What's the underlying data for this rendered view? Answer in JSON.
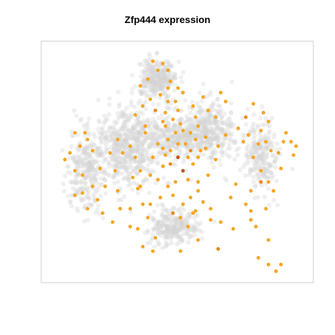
{
  "chart_data": {
    "type": "scatter",
    "title": "Zfp444 expression",
    "xlabel": "",
    "ylabel": "",
    "axes_visible": false,
    "grid": false,
    "legend": "none",
    "colors": {
      "background_cells": "#d4d4d4",
      "expressing_low": "#f5a623",
      "expressing_mid": "#ea8a1a",
      "expressing_high": "#c4541a",
      "frame": "#cccccc"
    },
    "clusters": [
      {
        "cx": 0.3,
        "cy": 0.42,
        "sx": 0.12,
        "sy": 0.16,
        "n": 520
      },
      {
        "cx": 0.62,
        "cy": 0.35,
        "sx": 0.1,
        "sy": 0.12,
        "n": 360
      },
      {
        "cx": 0.48,
        "cy": 0.38,
        "sx": 0.12,
        "sy": 0.08,
        "n": 280
      },
      {
        "cx": 0.42,
        "cy": 0.12,
        "sx": 0.07,
        "sy": 0.08,
        "n": 300
      },
      {
        "cx": 0.83,
        "cy": 0.46,
        "sx": 0.06,
        "sy": 0.14,
        "n": 220
      },
      {
        "cx": 0.48,
        "cy": 0.78,
        "sx": 0.09,
        "sy": 0.07,
        "n": 260
      },
      {
        "cx": 0.14,
        "cy": 0.52,
        "sx": 0.07,
        "sy": 0.18,
        "n": 260
      }
    ],
    "expressing_cells": [
      [
        0.36,
        0.87,
        1
      ],
      [
        0.41,
        0.83,
        1
      ],
      [
        0.4,
        0.89,
        1
      ],
      [
        0.6,
        0.67,
        1
      ],
      [
        0.66,
        0.88,
        2
      ],
      [
        0.72,
        0.79,
        1
      ],
      [
        0.67,
        0.76,
        1
      ],
      [
        0.63,
        0.75,
        1
      ],
      [
        0.58,
        0.84,
        1
      ],
      [
        0.77,
        0.68,
        1
      ],
      [
        0.79,
        0.71,
        1
      ],
      [
        0.82,
        0.92,
        1
      ],
      [
        0.86,
        0.95,
        1
      ],
      [
        0.89,
        0.98,
        1
      ],
      [
        0.91,
        0.95,
        1
      ],
      [
        0.86,
        0.84,
        1
      ],
      [
        0.63,
        0.7,
        1
      ],
      [
        0.57,
        0.71,
        1
      ],
      [
        0.51,
        0.89,
        1
      ],
      [
        0.51,
        0.74,
        1
      ],
      [
        0.54,
        0.78,
        1
      ],
      [
        0.36,
        0.68,
        1
      ],
      [
        0.39,
        0.68,
        1
      ],
      [
        0.2,
        0.72,
        1
      ],
      [
        0.26,
        0.62,
        1
      ],
      [
        0.31,
        0.78,
        1
      ],
      [
        0.31,
        0.7,
        1
      ],
      [
        0.34,
        0.61,
        1
      ],
      [
        0.48,
        0.72,
        2
      ],
      [
        0.48,
        0.64,
        1
      ],
      [
        0.42,
        0.57,
        1
      ],
      [
        0.49,
        0.58,
        1
      ],
      [
        0.44,
        0.51,
        1
      ],
      [
        0.47,
        0.5,
        2
      ],
      [
        0.5,
        0.47,
        3
      ],
      [
        0.52,
        0.53,
        3
      ],
      [
        0.54,
        0.47,
        1
      ],
      [
        0.56,
        0.5,
        1
      ],
      [
        0.58,
        0.47,
        1
      ],
      [
        0.59,
        0.44,
        1
      ],
      [
        0.55,
        0.44,
        2
      ],
      [
        0.53,
        0.41,
        1
      ],
      [
        0.5,
        0.41,
        1
      ],
      [
        0.47,
        0.44,
        1
      ],
      [
        0.44,
        0.43,
        1
      ],
      [
        0.42,
        0.41,
        1
      ],
      [
        0.46,
        0.39,
        1
      ],
      [
        0.49,
        0.36,
        1
      ],
      [
        0.52,
        0.35,
        1
      ],
      [
        0.55,
        0.36,
        1
      ],
      [
        0.58,
        0.33,
        1
      ],
      [
        0.61,
        0.38,
        1
      ],
      [
        0.61,
        0.43,
        1
      ],
      [
        0.57,
        0.39,
        1
      ],
      [
        0.45,
        0.33,
        1
      ],
      [
        0.44,
        0.31,
        1
      ],
      [
        0.48,
        0.3,
        1
      ],
      [
        0.51,
        0.32,
        1
      ],
      [
        0.45,
        0.27,
        1
      ],
      [
        0.46,
        0.22,
        1
      ],
      [
        0.43,
        0.19,
        1
      ],
      [
        0.46,
        0.16,
        1
      ],
      [
        0.47,
        0.13,
        1
      ],
      [
        0.5,
        0.16,
        1
      ],
      [
        0.52,
        0.18,
        1
      ],
      [
        0.49,
        0.22,
        1
      ],
      [
        0.56,
        0.24,
        1
      ],
      [
        0.6,
        0.2,
        1
      ],
      [
        0.62,
        0.26,
        1
      ],
      [
        0.69,
        0.22,
        1
      ],
      [
        0.67,
        0.18,
        1
      ],
      [
        0.79,
        0.75,
        1
      ],
      [
        0.81,
        0.78,
        1
      ],
      [
        0.85,
        0.7,
        1
      ],
      [
        0.88,
        0.62,
        1
      ],
      [
        0.86,
        0.58,
        1
      ],
      [
        0.83,
        0.53,
        1
      ],
      [
        0.8,
        0.47,
        1
      ],
      [
        0.82,
        0.41,
        1
      ],
      [
        0.85,
        0.4,
        1
      ],
      [
        0.87,
        0.44,
        1
      ],
      [
        0.83,
        0.35,
        1
      ],
      [
        0.86,
        0.31,
        1
      ],
      [
        0.84,
        0.27,
        1
      ],
      [
        0.74,
        0.34,
        1
      ],
      [
        0.77,
        0.29,
        2
      ],
      [
        0.8,
        0.23,
        1
      ],
      [
        0.73,
        0.59,
        1
      ],
      [
        0.71,
        0.65,
        1
      ],
      [
        0.62,
        0.55,
        1
      ],
      [
        0.58,
        0.58,
        1
      ],
      [
        0.54,
        0.57,
        1
      ],
      [
        0.25,
        0.53,
        1
      ],
      [
        0.28,
        0.45,
        1
      ],
      [
        0.33,
        0.47,
        1
      ],
      [
        0.35,
        0.53,
        1
      ],
      [
        0.31,
        0.42,
        1
      ],
      [
        0.26,
        0.39,
        1
      ],
      [
        0.23,
        0.45,
        1
      ],
      [
        0.19,
        0.52,
        1
      ],
      [
        0.16,
        0.44,
        1
      ],
      [
        0.14,
        0.39,
        1
      ],
      [
        0.13,
        0.36,
        1
      ],
      [
        0.09,
        0.36,
        1
      ],
      [
        0.11,
        0.42,
        1
      ],
      [
        0.07,
        0.45,
        1
      ],
      [
        0.05,
        0.48,
        1
      ],
      [
        0.09,
        0.53,
        1
      ],
      [
        0.12,
        0.55,
        1
      ],
      [
        0.16,
        0.6,
        1
      ],
      [
        0.12,
        0.63,
        1
      ],
      [
        0.09,
        0.64,
        1
      ],
      [
        0.14,
        0.7,
        1
      ],
      [
        0.18,
        0.66,
        1
      ],
      [
        0.21,
        0.6,
        1
      ],
      [
        0.27,
        0.7,
        1
      ],
      [
        0.24,
        0.76,
        1
      ],
      [
        0.34,
        0.79,
        1
      ],
      [
        0.38,
        0.74,
        1
      ],
      [
        0.43,
        0.65,
        1
      ],
      [
        0.46,
        0.6,
        1
      ],
      [
        0.4,
        0.47,
        1
      ],
      [
        0.37,
        0.36,
        1
      ],
      [
        0.33,
        0.28,
        1
      ],
      [
        0.36,
        0.24,
        1
      ],
      [
        0.39,
        0.21,
        1
      ],
      [
        0.35,
        0.15,
        1
      ],
      [
        0.38,
        0.12,
        1
      ],
      [
        0.42,
        0.08,
        1
      ],
      [
        0.46,
        0.08,
        1
      ],
      [
        0.4,
        0.04,
        1
      ],
      [
        0.44,
        0.05,
        1
      ],
      [
        0.37,
        0.33,
        1
      ],
      [
        0.41,
        0.26,
        2
      ],
      [
        0.5,
        0.26,
        1
      ],
      [
        0.57,
        0.29,
        1
      ],
      [
        0.65,
        0.29,
        1
      ],
      [
        0.69,
        0.37,
        1
      ],
      [
        0.66,
        0.42,
        1
      ],
      [
        0.65,
        0.48,
        1
      ],
      [
        0.76,
        0.4,
        1
      ],
      [
        0.78,
        0.37,
        1
      ],
      [
        0.9,
        0.45,
        1
      ],
      [
        0.92,
        0.4,
        1
      ],
      [
        0.93,
        0.36,
        1
      ],
      [
        0.95,
        0.4,
        1
      ],
      [
        0.97,
        0.42,
        1
      ],
      [
        0.96,
        0.46,
        1
      ],
      [
        0.91,
        0.52,
        1
      ],
      [
        0.83,
        0.58,
        2
      ],
      [
        0.79,
        0.62,
        1
      ],
      [
        0.55,
        0.65,
        1
      ],
      [
        0.52,
        0.68,
        1
      ],
      [
        0.56,
        0.72,
        1
      ],
      [
        0.58,
        0.62,
        1
      ],
      [
        0.35,
        0.6,
        1
      ],
      [
        0.32,
        0.56,
        1
      ],
      [
        0.39,
        0.55,
        1
      ],
      [
        0.45,
        0.46,
        1
      ]
    ]
  }
}
